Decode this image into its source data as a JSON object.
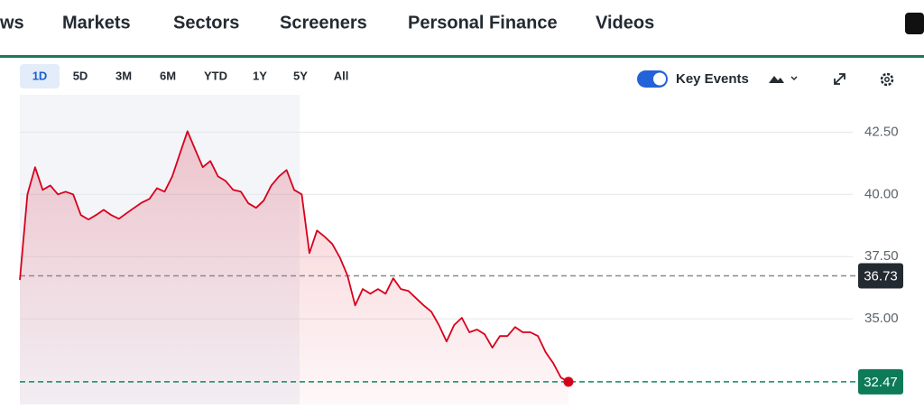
{
  "nav": {
    "items": [
      "ws",
      "Markets",
      "Sectors",
      "Screeners",
      "Personal Finance",
      "Videos"
    ]
  },
  "ranges": {
    "items": [
      "1D",
      "5D",
      "3M",
      "6M",
      "YTD",
      "1Y",
      "5Y",
      "All"
    ],
    "selected_index": 0
  },
  "key_events": {
    "label": "Key Events",
    "enabled": true
  },
  "chart_data": {
    "type": "line",
    "color": "#d6001c",
    "values": [
      36.56,
      40.0,
      41.09,
      40.18,
      40.36,
      40.0,
      40.11,
      40.0,
      39.17,
      38.99,
      39.17,
      39.38,
      39.17,
      39.02,
      39.24,
      39.46,
      39.67,
      39.82,
      40.25,
      40.11,
      40.72,
      41.63,
      42.54,
      41.81,
      41.09,
      41.34,
      40.72,
      40.54,
      40.18,
      40.11,
      39.64,
      39.46,
      39.75,
      40.36,
      40.72,
      40.98,
      40.18,
      40.0,
      37.64,
      38.55,
      38.3,
      38.01,
      37.46,
      36.74,
      35.54,
      36.2,
      36.01,
      36.2,
      36.01,
      36.63,
      36.2,
      36.12,
      35.83,
      35.54,
      35.29,
      34.75,
      34.09,
      34.75,
      35.04,
      34.46,
      34.57,
      34.38,
      33.84,
      34.31,
      34.31,
      34.67,
      34.46,
      34.46,
      34.31,
      33.66,
      33.22,
      32.64,
      32.47
    ],
    "ylim": [
      31.56,
      44.0
    ],
    "yticks": [
      {
        "value": 35,
        "label": "35.00"
      },
      {
        "value": 37.5,
        "label": "37.50"
      },
      {
        "value": 40,
        "label": "40.00"
      },
      {
        "value": 42.5,
        "label": "42.50"
      }
    ],
    "grid": true,
    "reference_lines": [
      {
        "value": 36.73,
        "color": "#8a8a8a",
        "label_bg": "#232a31"
      },
      {
        "value": 32.47,
        "color": "#0d8a63",
        "label_bg": "#0d7a58"
      }
    ]
  }
}
